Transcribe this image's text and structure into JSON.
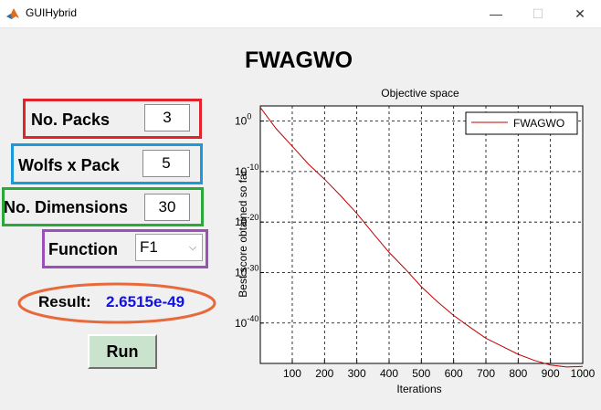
{
  "window": {
    "title": "GUIHybrid",
    "minimize": "—",
    "maximize": "☐",
    "close": "✕"
  },
  "heading": "FWAGWO",
  "form": {
    "packs": {
      "label": "No. Packs",
      "value": "3",
      "color": "#e0242a"
    },
    "wolfs": {
      "label": "Wolfs x Pack",
      "value": "5",
      "color": "#1a9ad8"
    },
    "dims": {
      "label": "No. Dimensions",
      "value": "30",
      "color": "#2aa83a"
    },
    "func": {
      "label": "Function",
      "value": "F1",
      "options": [
        "F1"
      ],
      "color": "#9b4fb8"
    }
  },
  "result": {
    "label": "Result:",
    "value": "2.6515e-49",
    "ring_color": "#e86a3c",
    "value_color": "#1010e8"
  },
  "run_label": "Run",
  "chart_data": {
    "type": "line",
    "title": "Objective space",
    "xlabel": "Iterations",
    "ylabel": "Best score obtained so far",
    "yscale": "log",
    "xlim": [
      1,
      1000
    ],
    "ylim_exp": [
      -48,
      3
    ],
    "xticks": [
      "100",
      "200",
      "300",
      "400",
      "500",
      "600",
      "700",
      "800",
      "900",
      "1000"
    ],
    "ytick_exponents": [
      "0",
      "-10",
      "-20",
      "-30",
      "-40"
    ],
    "grid": true,
    "legend_position": "top-right",
    "series": [
      {
        "name": "FWAGWO",
        "color": "#c00000",
        "x": [
          1,
          50,
          100,
          150,
          200,
          250,
          300,
          350,
          400,
          450,
          500,
          550,
          600,
          650,
          700,
          750,
          800,
          850,
          900,
          950,
          1000
        ],
        "y_exp": [
          2.7,
          -1.5,
          -5,
          -8.5,
          -11.5,
          -14.8,
          -18.3,
          -22.2,
          -26,
          -29.3,
          -32.8,
          -35.8,
          -38.5,
          -40.8,
          -43,
          -44.6,
          -46.2,
          -47.4,
          -48.3,
          -48.7,
          -48.6
        ]
      }
    ]
  }
}
